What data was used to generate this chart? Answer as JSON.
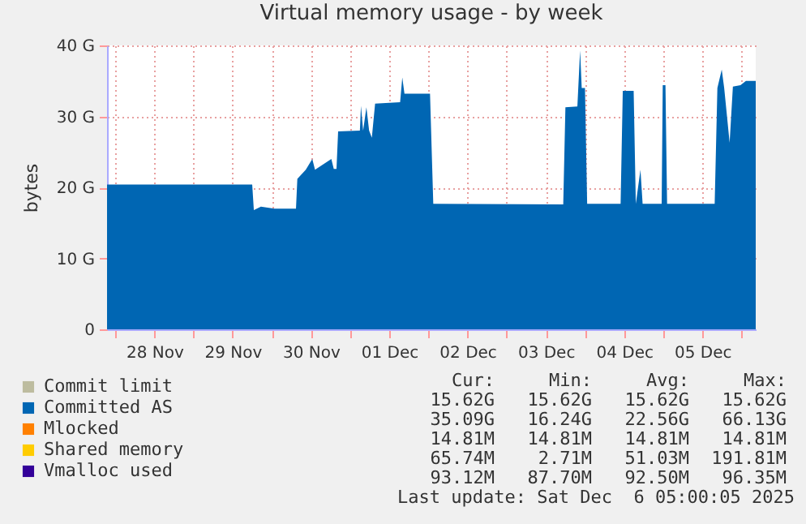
{
  "chart_data": {
    "type": "area",
    "title": "Virtual memory usage - by week",
    "ylabel": "bytes",
    "xlim": [
      "2025-11-27T21:30",
      "2025-12-06T04:20"
    ],
    "xticks": [
      {
        "value": "2025-11-28T00:00",
        "label": null
      },
      {
        "value": "2025-11-28T12:00",
        "label": "28 Nov"
      },
      {
        "value": "2025-11-29T00:00",
        "label": null
      },
      {
        "value": "2025-11-29T12:00",
        "label": "29 Nov"
      },
      {
        "value": "2025-11-30T00:00",
        "label": null
      },
      {
        "value": "2025-11-30T12:00",
        "label": "30 Nov"
      },
      {
        "value": "2025-12-01T00:00",
        "label": null
      },
      {
        "value": "2025-12-01T12:00",
        "label": "01 Dec"
      },
      {
        "value": "2025-12-02T00:00",
        "label": null
      },
      {
        "value": "2025-12-02T12:00",
        "label": "02 Dec"
      },
      {
        "value": "2025-12-03T00:00",
        "label": null
      },
      {
        "value": "2025-12-03T12:00",
        "label": "03 Dec"
      },
      {
        "value": "2025-12-04T00:00",
        "label": null
      },
      {
        "value": "2025-12-04T12:00",
        "label": "04 Dec"
      },
      {
        "value": "2025-12-05T00:00",
        "label": null
      },
      {
        "value": "2025-12-05T12:00",
        "label": "05 Dec"
      },
      {
        "value": "2025-12-06T00:00",
        "label": null
      }
    ],
    "ylim": [
      0,
      40
    ],
    "yticks": [
      0,
      {
        "value": 10,
        "label": "10 G"
      },
      {
        "value": 20,
        "label": "20 G"
      },
      {
        "value": 30,
        "label": "30 G"
      },
      {
        "value": 40,
        "label": "40 G"
      }
    ],
    "grid": true,
    "legend": "bottom left",
    "series": [
      {
        "name": "Commit limit",
        "color": "#bdbc9f"
      },
      {
        "name": "Committed AS",
        "color": "#0066b3",
        "x": [
          "2025-11-27T21:30",
          "2025-11-29T18:00",
          "2025-11-29T18:30",
          "2025-11-29T20:40",
          "2025-11-30T00:50",
          "2025-11-30T07:25",
          "2025-11-30T07:50",
          "2025-11-30T10:25",
          "2025-11-30T12:25",
          "2025-11-30T13:15",
          "2025-11-30T18:15",
          "2025-11-30T19:00",
          "2025-11-30T19:50",
          "2025-11-30T20:20",
          "2025-12-01T03:00",
          "2025-12-01T03:20",
          "2025-12-01T04:00",
          "2025-12-01T05:00",
          "2025-12-01T05:50",
          "2025-12-01T06:40",
          "2025-12-01T07:40",
          "2025-12-01T15:20",
          "2025-12-01T16:00",
          "2025-12-01T16:40",
          "2025-12-02T00:30",
          "2025-12-02T01:30",
          "2025-12-03T17:20",
          "2025-12-03T18:00",
          "2025-12-03T21:40",
          "2025-12-03T22:30",
          "2025-12-03T23:00",
          "2025-12-04T00:00",
          "2025-12-04T00:40",
          "2025-12-04T10:55",
          "2025-12-04T11:35",
          "2025-12-04T14:55",
          "2025-12-04T15:35",
          "2025-12-04T17:00",
          "2025-12-04T17:40",
          "2025-12-04T23:30",
          "2025-12-04T23:50",
          "2025-12-05T00:40",
          "2025-12-05T01:10",
          "2025-12-05T15:45",
          "2025-12-05T16:35",
          "2025-12-05T17:55",
          "2025-12-05T18:40",
          "2025-12-05T20:20",
          "2025-12-05T21:20",
          "2025-12-05T23:40",
          "2025-12-06T01:20",
          "2025-12-06T04:20"
        ],
        "values": [
          20.4,
          20.4,
          16.8,
          17.3,
          17.0,
          17.0,
          21.2,
          22.5,
          24,
          22.5,
          24,
          22.6,
          22.6,
          27.9,
          28,
          31.5,
          28,
          31.3,
          28,
          27,
          31.8,
          32,
          35.5,
          33.2,
          33.2,
          17.7,
          17.6,
          31.3,
          31.4,
          39.3,
          34,
          34,
          17.7,
          17.7,
          33.6,
          33.6,
          17.7,
          22.5,
          17.7,
          17.7,
          34.4,
          34.4,
          17.7,
          17.7,
          34,
          36.6,
          34,
          26.3,
          34.2,
          34.4,
          35,
          35
        ]
      },
      {
        "name": "Mlocked",
        "color": "#ff8000"
      },
      {
        "name": "Shared memory",
        "color": "#ffcc00"
      },
      {
        "name": "Vmalloc used",
        "color": "#330099"
      }
    ],
    "annotations": [
      "Cur:",
      "Min:",
      "Avg:",
      "Max:",
      "15.62G",
      "15.62G",
      "15.62G",
      "15.62G",
      "35.09G",
      "16.24G",
      "22.56G",
      "66.13G",
      "14.81M",
      "14.81M",
      "14.81M",
      "14.81M",
      "65.74M",
      "2.71M",
      "51.03M",
      "191.81M",
      "93.12M",
      "87.70M",
      "92.50M",
      "96.35M",
      "Last update: Sat Dec  6 05:00:05 2025"
    ]
  }
}
